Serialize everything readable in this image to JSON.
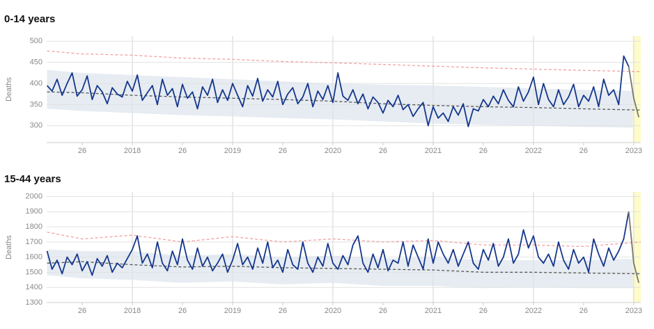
{
  "chart_data": [
    {
      "type": "line",
      "title": "0-14 years",
      "ylabel": "Deaths",
      "xlim": [
        2017.146,
        2023.07
      ],
      "ylim": [
        260,
        512
      ],
      "xticks": [
        {
          "value": 2017.5,
          "label": "26"
        },
        2018,
        {
          "value": 2018.5,
          "label": "26"
        },
        2019,
        {
          "value": 2019.5,
          "label": "26"
        },
        2020,
        {
          "value": 2020.5,
          "label": "26"
        },
        2021,
        {
          "value": 2021.5,
          "label": "26"
        },
        2022,
        {
          "value": 2022.5,
          "label": "26"
        },
        2023
      ],
      "yticks": [
        300,
        350,
        400,
        450,
        500
      ],
      "grid": true,
      "highlight": [
        2022.99,
        2023.07
      ],
      "highlight_color": "#fdfbc8",
      "band": {
        "color": "#e6ecf2",
        "x": [
          2017.15,
          2017.5,
          2018,
          2018.5,
          2019,
          2019.5,
          2020,
          2020.5,
          2021,
          2021.5,
          2022,
          2022.5,
          2023.07
        ],
        "lower": [
          340,
          335,
          330,
          325,
          322,
          318,
          315,
          310,
          305,
          302,
          300,
          297,
          295
        ],
        "upper": [
          432,
          425,
          420,
          415,
          410,
          405,
          400,
          397,
          395,
          392,
          388,
          385,
          382
        ]
      },
      "series": [
        {
          "color": "#f4a0a0",
          "dashed": true,
          "x": [
            2017.15,
            2017.5,
            2018,
            2018.5,
            2019,
            2019.5,
            2020,
            2020.5,
            2021,
            2021.5,
            2022,
            2022.5,
            2023.07
          ],
          "values": [
            477,
            470,
            467,
            460,
            457,
            452,
            449,
            445,
            441,
            437,
            434,
            431,
            428
          ]
        },
        {
          "color": "#555555",
          "dashed": true,
          "x": [
            2017.15,
            2017.5,
            2018,
            2018.5,
            2019,
            2019.5,
            2020,
            2020.5,
            2021,
            2021.5,
            2022,
            2022.5,
            2023.07
          ],
          "values": [
            380,
            378,
            372,
            368,
            365,
            362,
            358,
            352,
            348,
            345,
            343,
            340,
            337
          ]
        },
        {
          "color": "#14368c",
          "dashed": false,
          "x": [
            2017.15,
            2017.2,
            2017.25,
            2017.3,
            2017.35,
            2017.4,
            2017.45,
            2017.5,
            2017.55,
            2017.6,
            2017.65,
            2017.7,
            2017.75,
            2017.8,
            2017.85,
            2017.9,
            2017.95,
            2018,
            2018.05,
            2018.1,
            2018.15,
            2018.2,
            2018.25,
            2018.3,
            2018.35,
            2018.4,
            2018.45,
            2018.5,
            2018.55,
            2018.6,
            2018.65,
            2018.7,
            2018.75,
            2018.8,
            2018.85,
            2018.9,
            2018.95,
            2019,
            2019.05,
            2019.1,
            2019.15,
            2019.2,
            2019.25,
            2019.3,
            2019.35,
            2019.4,
            2019.45,
            2019.5,
            2019.55,
            2019.6,
            2019.65,
            2019.7,
            2019.75,
            2019.8,
            2019.85,
            2019.9,
            2019.95,
            2020,
            2020.05,
            2020.1,
            2020.15,
            2020.2,
            2020.25,
            2020.3,
            2020.35,
            2020.4,
            2020.45,
            2020.5,
            2020.55,
            2020.6,
            2020.65,
            2020.7,
            2020.75,
            2020.8,
            2020.85,
            2020.9,
            2020.95,
            2021,
            2021.05,
            2021.1,
            2021.15,
            2021.2,
            2021.25,
            2021.3,
            2021.35,
            2021.4,
            2021.45,
            2021.5,
            2021.55,
            2021.6,
            2021.65,
            2021.7,
            2021.75,
            2021.8,
            2021.85,
            2021.9,
            2021.95,
            2022,
            2022.05,
            2022.1,
            2022.15,
            2022.2,
            2022.25,
            2022.3,
            2022.35,
            2022.4,
            2022.45,
            2022.5,
            2022.55,
            2022.6,
            2022.65,
            2022.7,
            2022.75,
            2022.8,
            2022.85,
            2022.9,
            2022.95
          ],
          "values": [
            395,
            382,
            410,
            372,
            400,
            425,
            370,
            385,
            418,
            362,
            395,
            380,
            352,
            390,
            375,
            368,
            405,
            382,
            420,
            360,
            378,
            395,
            350,
            410,
            372,
            388,
            345,
            398,
            365,
            380,
            340,
            392,
            372,
            410,
            355,
            385,
            360,
            400,
            372,
            345,
            395,
            370,
            412,
            358,
            385,
            368,
            405,
            350,
            375,
            390,
            352,
            368,
            400,
            345,
            382,
            362,
            395,
            355,
            425,
            370,
            360,
            385,
            352,
            375,
            340,
            368,
            355,
            330,
            360,
            345,
            372,
            338,
            350,
            322,
            340,
            355,
            300,
            345,
            318,
            330,
            310,
            345,
            325,
            352,
            298,
            340,
            335,
            362,
            345,
            370,
            352,
            385,
            360,
            345,
            392,
            358,
            380,
            415,
            350,
            400,
            362,
            345,
            385,
            350,
            368,
            398,
            345,
            372,
            358,
            392,
            345,
            410,
            372,
            385,
            350,
            465,
            440
          ]
        },
        {
          "color": "#777777",
          "dashed": false,
          "x": [
            2023,
            2023.05
          ],
          "values": [
            365,
            320
          ]
        }
      ]
    },
    {
      "type": "line",
      "title": "15-44 years",
      "ylabel": "Deaths",
      "xlim": [
        2017.146,
        2023.07
      ],
      "ylim": [
        1300,
        2030
      ],
      "xticks": [
        {
          "value": 2017.5,
          "label": "26"
        },
        2018,
        {
          "value": 2018.5,
          "label": "26"
        },
        2019,
        {
          "value": 2019.5,
          "label": "26"
        },
        2020,
        {
          "value": 2020.5,
          "label": "26"
        },
        2021,
        {
          "value": 2021.5,
          "label": "26"
        },
        2022,
        {
          "value": 2022.5,
          "label": "26"
        },
        2023
      ],
      "yticks": [
        1300,
        1400,
        1500,
        1600,
        1700,
        1800,
        1900,
        2000
      ],
      "grid": true,
      "highlight": [
        2022.99,
        2023.07
      ],
      "highlight_color": "#fdfbc8",
      "band": {
        "color": "#e6ecf2",
        "x": [
          2017.15,
          2017.5,
          2018,
          2018.5,
          2019,
          2019.5,
          2020,
          2020.5,
          2021,
          2021.5,
          2022,
          2022.5,
          2023.07
        ],
        "lower": [
          1480,
          1460,
          1450,
          1430,
          1440,
          1420,
          1430,
          1410,
          1410,
          1395,
          1400,
          1395,
          1395
        ],
        "upper": [
          1650,
          1640,
          1640,
          1610,
          1620,
          1600,
          1610,
          1590,
          1600,
          1580,
          1580,
          1580,
          1590
        ]
      },
      "series": [
        {
          "color": "#f4a0a0",
          "dashed": true,
          "x": [
            2017.15,
            2017.5,
            2018,
            2018.5,
            2019,
            2019.5,
            2020,
            2020.5,
            2021,
            2021.5,
            2022,
            2022.5,
            2023.07
          ],
          "values": [
            1765,
            1720,
            1745,
            1700,
            1735,
            1700,
            1720,
            1700,
            1710,
            1680,
            1680,
            1670,
            1700
          ]
        },
        {
          "color": "#555555",
          "dashed": true,
          "x": [
            2017.15,
            2017.5,
            2018,
            2018.5,
            2019,
            2019.5,
            2020,
            2020.5,
            2021,
            2021.5,
            2022,
            2022.5,
            2023.07
          ],
          "values": [
            1560,
            1570,
            1550,
            1535,
            1540,
            1530,
            1525,
            1520,
            1515,
            1500,
            1500,
            1495,
            1490
          ]
        },
        {
          "color": "#14368c",
          "dashed": false,
          "x": [
            2017.15,
            2017.2,
            2017.25,
            2017.3,
            2017.35,
            2017.4,
            2017.45,
            2017.5,
            2017.55,
            2017.6,
            2017.65,
            2017.7,
            2017.75,
            2017.8,
            2017.85,
            2017.9,
            2017.95,
            2018,
            2018.05,
            2018.1,
            2018.15,
            2018.2,
            2018.25,
            2018.3,
            2018.35,
            2018.4,
            2018.45,
            2018.5,
            2018.55,
            2018.6,
            2018.65,
            2018.7,
            2018.75,
            2018.8,
            2018.85,
            2018.9,
            2018.95,
            2019,
            2019.05,
            2019.1,
            2019.15,
            2019.2,
            2019.25,
            2019.3,
            2019.35,
            2019.4,
            2019.45,
            2019.5,
            2019.55,
            2019.6,
            2019.65,
            2019.7,
            2019.75,
            2019.8,
            2019.85,
            2019.9,
            2019.95,
            2020,
            2020.05,
            2020.1,
            2020.15,
            2020.2,
            2020.25,
            2020.3,
            2020.35,
            2020.4,
            2020.45,
            2020.5,
            2020.55,
            2020.6,
            2020.65,
            2020.7,
            2020.75,
            2020.8,
            2020.85,
            2020.9,
            2020.95,
            2021,
            2021.05,
            2021.1,
            2021.15,
            2021.2,
            2021.25,
            2021.3,
            2021.35,
            2021.4,
            2021.45,
            2021.5,
            2021.55,
            2021.6,
            2021.65,
            2021.7,
            2021.75,
            2021.8,
            2021.85,
            2021.9,
            2021.95,
            2022,
            2022.05,
            2022.1,
            2022.15,
            2022.2,
            2022.25,
            2022.3,
            2022.35,
            2022.4,
            2022.45,
            2022.5,
            2022.55,
            2022.6,
            2022.65,
            2022.7,
            2022.75,
            2022.8,
            2022.85,
            2022.9,
            2022.95
          ],
          "values": [
            1640,
            1520,
            1580,
            1490,
            1600,
            1550,
            1620,
            1510,
            1570,
            1480,
            1590,
            1540,
            1610,
            1500,
            1560,
            1530,
            1590,
            1650,
            1740,
            1560,
            1620,
            1530,
            1700,
            1560,
            1510,
            1640,
            1550,
            1720,
            1580,
            1520,
            1660,
            1540,
            1600,
            1510,
            1560,
            1620,
            1500,
            1580,
            1690,
            1550,
            1600,
            1520,
            1660,
            1560,
            1700,
            1530,
            1580,
            1500,
            1650,
            1550,
            1520,
            1700,
            1560,
            1500,
            1600,
            1540,
            1690,
            1560,
            1520,
            1610,
            1550,
            1680,
            1740,
            1560,
            1500,
            1620,
            1530,
            1650,
            1510,
            1580,
            1560,
            1700,
            1540,
            1680,
            1600,
            1520,
            1720,
            1560,
            1700,
            1620,
            1560,
            1650,
            1540,
            1620,
            1700,
            1560,
            1520,
            1650,
            1580,
            1690,
            1540,
            1600,
            1720,
            1560,
            1620,
            1780,
            1660,
            1740,
            1600,
            1560,
            1620,
            1540,
            1700,
            1580,
            1520,
            1650,
            1560,
            1600,
            1500,
            1720,
            1620,
            1540,
            1660,
            1580,
            1640,
            1720,
            1900
          ]
        },
        {
          "color": "#777777",
          "dashed": false,
          "x": [
            2023,
            2023.05
          ],
          "values": [
            1560,
            1430
          ]
        }
      ]
    }
  ]
}
